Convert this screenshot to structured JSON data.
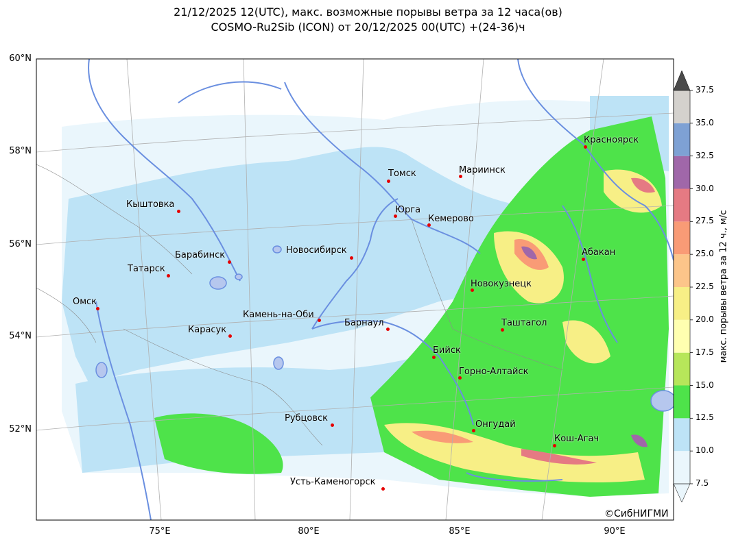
{
  "title": {
    "line1": "21/12/2025 12(UTC), макс. возможные порывы ветра за 12 часа(ов)",
    "line2": "COSMO-Ru2Sib (ICON) от 20/12/2025 00(UTC) +(24-36)ч"
  },
  "axes": {
    "lat_labels": [
      "60°N",
      "58°N",
      "56°N",
      "54°N",
      "52°N"
    ],
    "lon_labels": [
      "75°E",
      "80°E",
      "85°E",
      "90°E"
    ]
  },
  "colorbar": {
    "title": "макс. порывы ветра за 12 ч., м/с",
    "ticks": [
      "7.5",
      "10.0",
      "12.5",
      "15.0",
      "17.5",
      "20.0",
      "22.5",
      "25.0",
      "27.5",
      "30.0",
      "32.5",
      "35.0",
      "37.5"
    ],
    "colors": [
      "#eaf6fc",
      "#bde3f6",
      "#4ee34a",
      "#b7e65a",
      "#ffffb0",
      "#f7ef86",
      "#fcc58a",
      "#f99b76",
      "#e57a83",
      "#a067a9",
      "#7ea1d4",
      "#d4d1cd",
      "#4a4a4a"
    ]
  },
  "cities": [
    {
      "name": "Красноярск"
    },
    {
      "name": "Томск"
    },
    {
      "name": "Мариинск"
    },
    {
      "name": "Кыштовка"
    },
    {
      "name": "Юрга"
    },
    {
      "name": "Кемерово"
    },
    {
      "name": "Новосибирск"
    },
    {
      "name": "Барабинск"
    },
    {
      "name": "Абакан"
    },
    {
      "name": "Татарск"
    },
    {
      "name": "Новокузнецк"
    },
    {
      "name": "Омск"
    },
    {
      "name": "Камень-на-Оби"
    },
    {
      "name": "Барнаул"
    },
    {
      "name": "Таштагол"
    },
    {
      "name": "Карасук"
    },
    {
      "name": "Бийск"
    },
    {
      "name": "Горно-Алтайск"
    },
    {
      "name": "Рубцовск"
    },
    {
      "name": "Онгудай"
    },
    {
      "name": "Кош-Агач"
    },
    {
      "name": "Усть-Каменогорск"
    }
  ],
  "copyright": "©СибНИГМИ"
}
